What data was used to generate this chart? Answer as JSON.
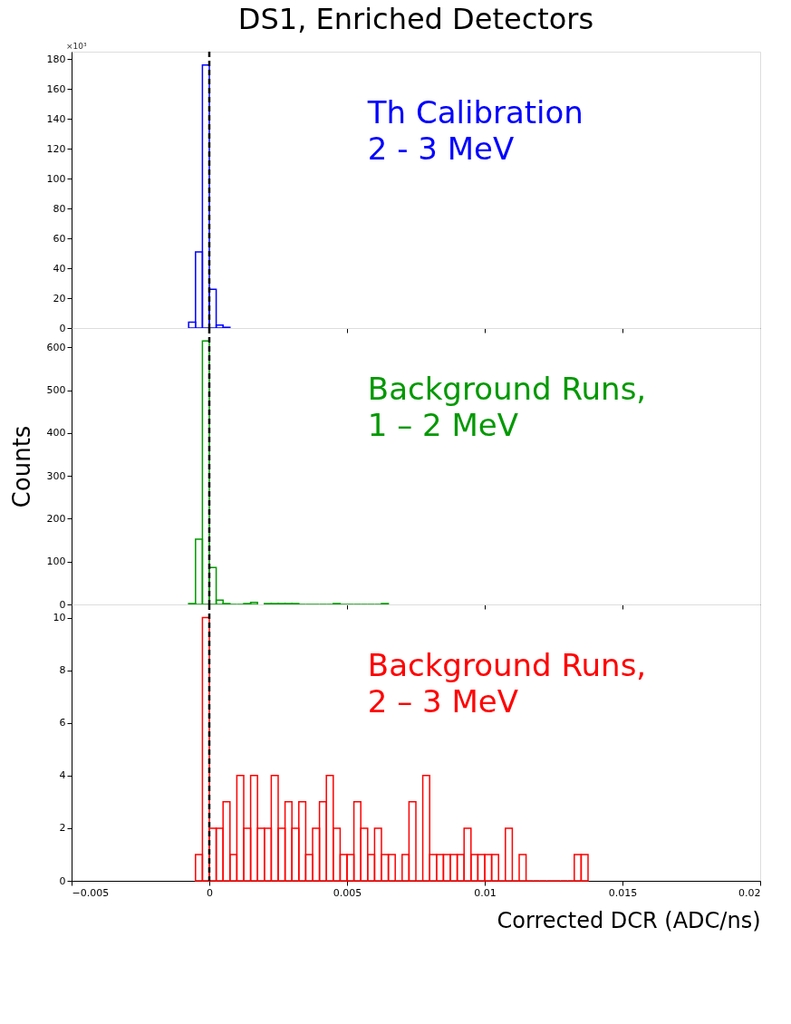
{
  "chart_data": [
    {
      "type": "histogram",
      "title": "DS1, Enriched Detectors",
      "bins": [
        -0.00075,
        -0.0005,
        -0.00025,
        0,
        0.00025,
        0.0005,
        0.00075
      ],
      "series": [
        {
          "name": "Th Calibration\n2 - 3 MeV",
          "color": "#0000ff",
          "values": [
            4,
            51,
            176,
            26,
            2,
            0.5
          ]
        }
      ],
      "xlim": [
        -0.005,
        0.02
      ],
      "xticks": [
        -0.005,
        0,
        0.005,
        0.01,
        0.015,
        0.02
      ],
      "ylim": [
        0,
        185
      ],
      "yticks": [
        0,
        20,
        40,
        60,
        80,
        100,
        120,
        140,
        160,
        180
      ],
      "tick_labels": "y",
      "ref_lines": [
        {
          "axis": "x",
          "value": 0,
          "color": "#000000",
          "line_style": "dashed"
        }
      ],
      "annotations": [
        "×10³"
      ]
    },
    {
      "type": "histogram",
      "ylabel": "Counts",
      "bins": [
        -0.00075,
        -0.0005,
        -0.00025,
        0,
        0.00025,
        0.0005,
        0.00075,
        0.001,
        0.00125,
        0.0015,
        0.00175,
        0.002,
        0.00225,
        0.0025,
        0.00275,
        0.003,
        0.00325,
        0.0035,
        0.00375,
        0.004,
        0.00425,
        0.0045,
        0.00475,
        0.005,
        0.00525,
        0.0055,
        0.00575,
        0.006,
        0.00625,
        0.0065
      ],
      "series": [
        {
          "name": "Background Runs,\n1 – 2 MeV",
          "color": "#009900",
          "values": [
            2,
            152,
            615,
            86,
            10,
            2,
            0,
            0,
            2,
            5,
            null,
            2,
            2,
            2,
            2,
            2,
            0,
            0,
            0,
            0,
            0,
            2,
            0,
            0,
            0,
            0,
            0,
            0,
            2
          ]
        }
      ],
      "xlim": [
        -0.005,
        0.02
      ],
      "xticks": [
        -0.005,
        0,
        0.005,
        0.01,
        0.015,
        0.02
      ],
      "ylim": [
        0,
        645
      ],
      "yticks": [
        0,
        100,
        200,
        300,
        400,
        500,
        600
      ],
      "tick_labels": "y",
      "ref_lines": [
        {
          "axis": "x",
          "value": 0,
          "color": "#000000",
          "line_style": "dashed"
        }
      ]
    },
    {
      "type": "histogram",
      "xlabel": "Corrected DCR (ADC/ns)",
      "bins": [
        -0.0005,
        -0.00025,
        0,
        0.00025,
        0.0005,
        0.00075,
        0.001,
        0.00125,
        0.0015,
        0.00175,
        0.002,
        0.00225,
        0.0025,
        0.00275,
        0.003,
        0.00325,
        0.0035,
        0.00375,
        0.004,
        0.00425,
        0.0045,
        0.00475,
        0.005,
        0.00525,
        0.0055,
        0.00575,
        0.006,
        0.00625,
        0.0065,
        0.00675,
        0.007,
        0.00725,
        0.0075,
        0.00775,
        0.008,
        0.00825,
        0.0085,
        0.00875,
        0.009,
        0.00925,
        0.0095,
        0.00975,
        0.01,
        0.01025,
        0.0105,
        0.01075,
        0.011,
        0.01125,
        0.0115,
        0.01175,
        0.012,
        0.01225,
        0.0125,
        0.01275,
        0.013,
        0.01325,
        0.0135,
        0.01375
      ],
      "series": [
        {
          "name": "Background Runs,\n2 – 3 MeV",
          "color": "#ff0000",
          "values": [
            1,
            10,
            2,
            2,
            3,
            1,
            4,
            2,
            4,
            2,
            2,
            4,
            2,
            3,
            2,
            3,
            1,
            2,
            3,
            4,
            2,
            1,
            1,
            3,
            2,
            1,
            2,
            1,
            1,
            0,
            1,
            3,
            0,
            4,
            1,
            1,
            1,
            1,
            1,
            2,
            1,
            1,
            1,
            1,
            0,
            2,
            0,
            1,
            0,
            0,
            0,
            0,
            0,
            0,
            0,
            1,
            1
          ]
        }
      ],
      "xlim": [
        -0.005,
        0.02
      ],
      "xticks": [
        -0.005,
        0,
        0.005,
        0.01,
        0.015,
        0.02
      ],
      "ylim": [
        0,
        10.5
      ],
      "yticks": [
        0,
        2,
        4,
        6,
        8,
        10
      ],
      "ref_lines": [
        {
          "axis": "x",
          "value": 0,
          "color": "#000000",
          "line_style": "dashed"
        }
      ]
    }
  ]
}
